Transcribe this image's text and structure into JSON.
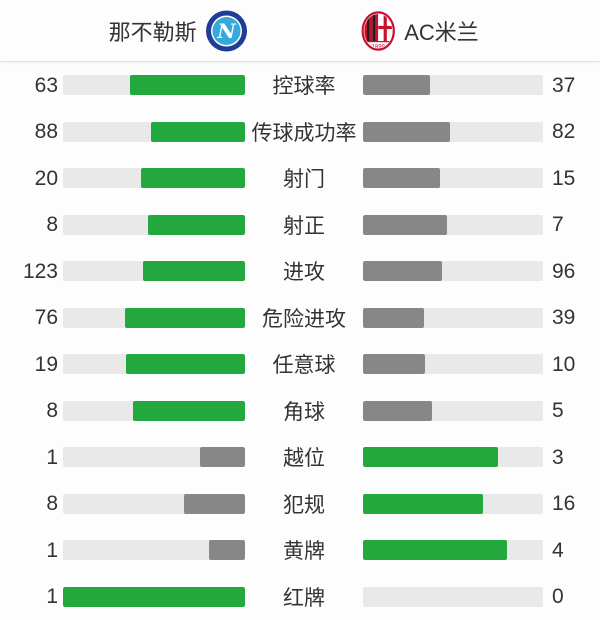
{
  "header": {
    "home": {
      "name": "那不勒斯",
      "logo": "napoli-badge",
      "logo_letter": "N"
    },
    "away": {
      "name": "AC米兰",
      "logo": "ac-milan-badge",
      "logo_year": "1899"
    }
  },
  "colors": {
    "leading_fill": "#22a83c",
    "trailing_fill": "#878787",
    "bar_track": "#e9e9e9",
    "text": "#333333",
    "background": "#fdfdfd",
    "header_border": "#e1e1e1",
    "napoli_navy": "#1d3e94",
    "napoli_blue": "#35a8dd",
    "milan_red": "#c8102e",
    "milan_black": "#231f20"
  },
  "stats": [
    {
      "label": "控球率",
      "home": 63,
      "away": 37
    },
    {
      "label": "传球成功率",
      "home": 88,
      "away": 82
    },
    {
      "label": "射门",
      "home": 20,
      "away": 15
    },
    {
      "label": "射正",
      "home": 8,
      "away": 7
    },
    {
      "label": "进攻",
      "home": 123,
      "away": 96
    },
    {
      "label": "危险进攻",
      "home": 76,
      "away": 39
    },
    {
      "label": "任意球",
      "home": 19,
      "away": 10
    },
    {
      "label": "角球",
      "home": 8,
      "away": 5
    },
    {
      "label": "越位",
      "home": 1,
      "away": 3
    },
    {
      "label": "犯规",
      "home": 8,
      "away": 16
    },
    {
      "label": "黄牌",
      "home": 1,
      "away": 4
    },
    {
      "label": "红牌",
      "home": 1,
      "away": 0
    }
  ]
}
